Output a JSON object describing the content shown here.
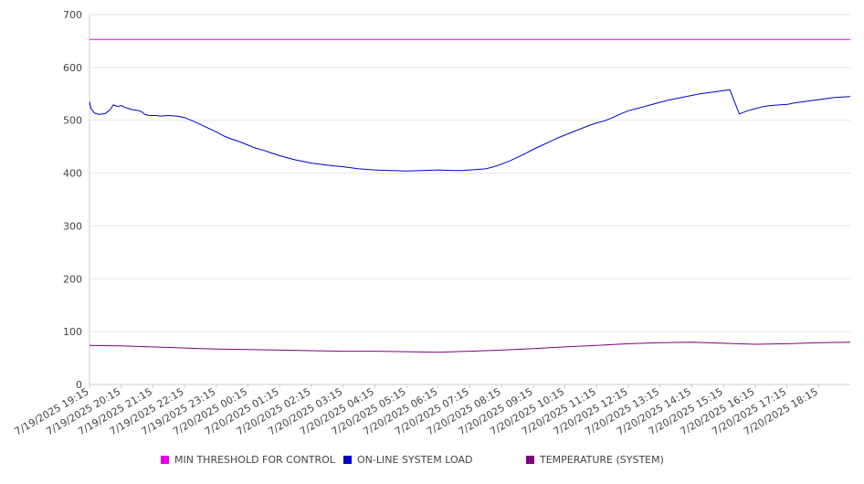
{
  "chart_data": {
    "type": "line",
    "ylim": [
      0,
      700
    ],
    "yticks": [
      0,
      100,
      200,
      300,
      400,
      500,
      600,
      700
    ],
    "xtick_labels": [
      "7/19/2025 19:15",
      "7/19/2025 20:15",
      "7/19/2025 21:15",
      "7/19/2025 22:15",
      "7/19/2025 23:15",
      "7/20/2025 00:15",
      "7/20/2025 01:15",
      "7/20/2025 02:15",
      "7/20/2025 03:15",
      "7/20/2025 04:15",
      "7/20/2025 05:15",
      "7/20/2025 06:15",
      "7/20/2025 07:15",
      "7/20/2025 08:15",
      "7/20/2025 09:15",
      "7/20/2025 10:15",
      "7/20/2025 11:15",
      "7/20/2025 12:15",
      "7/20/2025 13:15",
      "7/20/2025 14:15",
      "7/20/2025 15:15",
      "7/20/2025 16:15",
      "7/20/2025 17:15",
      "7/20/2025 18:15"
    ],
    "grid": true,
    "legend_position": "bottom",
    "series": [
      {
        "name": "MIN THRESHOLD FOR CONTROL",
        "color": "#e600e6",
        "hours": [
          0,
          24
        ],
        "values": [
          653,
          653
        ]
      },
      {
        "name": "ON-LINE SYSTEM LOAD",
        "color": "#0000cc",
        "hours": [
          0,
          0.05,
          0.15,
          0.3,
          0.5,
          0.65,
          0.75,
          0.9,
          1.0,
          1.1,
          1.25,
          1.35,
          1.5,
          1.65,
          1.75,
          1.9,
          2.1,
          2.25,
          2.5,
          2.75,
          3.0,
          3.25,
          3.5,
          3.75,
          4.0,
          4.25,
          4.5,
          4.75,
          5.0,
          5.25,
          5.5,
          5.75,
          6.0,
          6.5,
          7.0,
          7.5,
          8.0,
          8.5,
          9.0,
          9.5,
          10.0,
          10.5,
          11.0,
          11.5,
          11.75,
          12.0,
          12.25,
          12.5,
          12.75,
          13.0,
          13.25,
          13.5,
          13.75,
          14.0,
          14.25,
          14.5,
          14.75,
          15.0,
          15.25,
          15.5,
          15.75,
          16.0,
          16.25,
          16.5,
          16.75,
          17.0,
          17.25,
          17.5,
          17.75,
          18.0,
          18.25,
          18.5,
          18.75,
          19.0,
          19.25,
          19.5,
          19.75,
          20.0,
          20.1,
          20.2,
          20.5,
          20.75,
          21.0,
          21.25,
          21.5,
          21.75,
          22.0,
          22.25,
          22.5,
          22.75,
          23.0,
          23.25,
          23.5,
          23.75,
          24.0
        ],
        "values": [
          535,
          522,
          514,
          511,
          513,
          520,
          529,
          526,
          528,
          525,
          522,
          520,
          519,
          516,
          511,
          509,
          509,
          508,
          509,
          508,
          505,
          499,
          492,
          485,
          478,
          470,
          464,
          459,
          453,
          447,
          443,
          438,
          433,
          425,
          419,
          415,
          412,
          408,
          406,
          405,
          404,
          405,
          406,
          405,
          405,
          406,
          407,
          408,
          412,
          417,
          423,
          430,
          437,
          445,
          452,
          459,
          466,
          472,
          478,
          484,
          490,
          495,
          499,
          505,
          512,
          518,
          522,
          526,
          530,
          534,
          538,
          541,
          544,
          547,
          550,
          552,
          554,
          556,
          557,
          558,
          512,
          518,
          522,
          526,
          528,
          529,
          530,
          533,
          535,
          537,
          539,
          541,
          543,
          544,
          545
        ]
      },
      {
        "name": "TEMPERATURE (SYSTEM)",
        "color": "#800080",
        "hours": [
          0,
          1,
          2,
          3,
          4,
          5,
          6,
          7,
          8,
          9,
          10,
          11,
          12,
          13,
          14,
          15,
          16,
          17,
          18,
          19,
          20,
          21,
          22,
          23,
          24
        ],
        "values": [
          74,
          73,
          71,
          69,
          67,
          66,
          65,
          64,
          63,
          63,
          62,
          61,
          63,
          65,
          68,
          71,
          74,
          77,
          79,
          80,
          78,
          76,
          77,
          79,
          80
        ]
      }
    ]
  }
}
